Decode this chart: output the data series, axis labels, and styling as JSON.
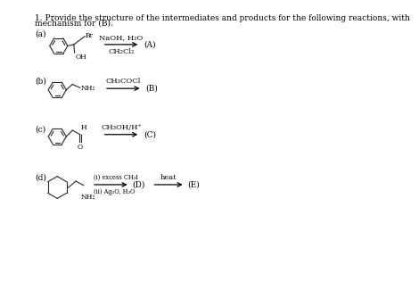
{
  "title_line1": "1. Provide the structure of the intermediates and products for the following reactions, with",
  "title_line2": "mechanism for (B).",
  "title_fontsize": 6.5,
  "background_color": "#ffffff",
  "text_color": "#000000",
  "label_fontsize": 6.5,
  "reagent_fontsize": 6.0,
  "product_fontsize": 6.5
}
